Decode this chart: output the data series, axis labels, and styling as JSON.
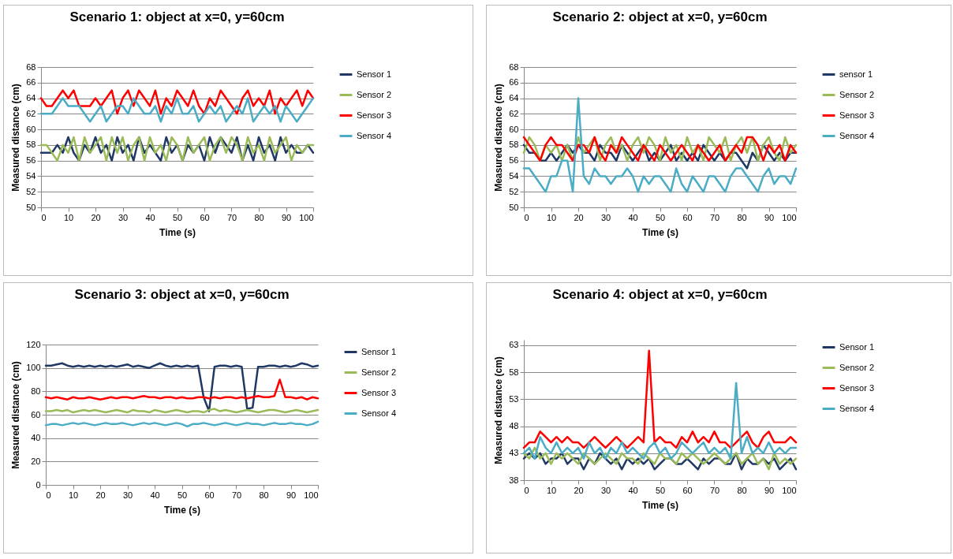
{
  "chart_data": [
    {
      "type": "line",
      "title": "Scenario 1: object at x=0, y=60cm",
      "xlabel": "Time (s)",
      "ylabel": "Measured distance (cm)",
      "x": [
        0,
        2,
        4,
        6,
        8,
        10,
        12,
        14,
        16,
        18,
        20,
        22,
        24,
        26,
        28,
        30,
        32,
        34,
        36,
        38,
        40,
        42,
        44,
        46,
        48,
        50,
        52,
        54,
        56,
        58,
        60,
        62,
        64,
        66,
        68,
        70,
        72,
        74,
        76,
        78,
        80,
        82,
        84,
        86,
        88,
        90,
        92,
        94,
        96,
        98,
        100
      ],
      "xlim": [
        0,
        100
      ],
      "xticks": [
        0,
        10,
        20,
        30,
        40,
        50,
        60,
        70,
        80,
        90,
        100
      ],
      "ylim": [
        50,
        68
      ],
      "yticks": [
        50,
        52,
        54,
        56,
        58,
        60,
        62,
        64,
        66,
        68
      ],
      "grid": "y",
      "legend": "right",
      "line_style": "solid",
      "series": [
        {
          "name": "Sensor 1",
          "color": "#1f3864",
          "values": [
            57,
            57,
            57,
            58,
            57,
            59,
            57,
            56,
            58,
            57,
            59,
            57,
            58,
            56,
            59,
            57,
            58,
            56,
            59,
            57,
            58,
            57,
            56,
            59,
            57,
            58,
            56,
            58,
            57,
            58,
            56,
            59,
            57,
            59,
            58,
            57,
            59,
            56,
            58,
            56,
            59,
            57,
            58,
            56,
            59,
            57,
            58,
            57,
            57,
            58,
            57
          ]
        },
        {
          "name": "Sensor 2",
          "color": "#9bbb59",
          "values": [
            58,
            58,
            57,
            56,
            58,
            57,
            59,
            56,
            59,
            57,
            58,
            59,
            56,
            59,
            57,
            59,
            56,
            58,
            59,
            56,
            59,
            57,
            58,
            56,
            59,
            58,
            56,
            59,
            57,
            58,
            59,
            56,
            58,
            59,
            57,
            59,
            58,
            56,
            59,
            57,
            58,
            56,
            59,
            57,
            58,
            59,
            56,
            58,
            57,
            58,
            58
          ]
        },
        {
          "name": "Sensor 3",
          "color": "#ff0000",
          "values": [
            64,
            63,
            63,
            64,
            65,
            64,
            65,
            63,
            63,
            63,
            64,
            63,
            64,
            65,
            62,
            64,
            65,
            63,
            65,
            64,
            63,
            65,
            62,
            64,
            63,
            65,
            64,
            63,
            65,
            63,
            62,
            64,
            63,
            65,
            64,
            63,
            62,
            64,
            65,
            63,
            64,
            63,
            65,
            62,
            64,
            63,
            64,
            65,
            63,
            65,
            64
          ]
        },
        {
          "name": "Sensor 4",
          "color": "#4bacc6",
          "values": [
            62,
            62,
            62,
            63,
            64,
            63,
            63,
            63,
            62,
            61,
            62,
            63,
            61,
            62,
            63,
            63,
            62,
            64,
            63,
            62,
            62,
            63,
            61,
            63,
            62,
            64,
            62,
            62,
            63,
            61,
            62,
            63,
            62,
            63,
            61,
            62,
            63,
            62,
            64,
            61,
            62,
            63,
            62,
            63,
            61,
            63,
            62,
            61,
            62,
            63,
            64
          ]
        }
      ]
    },
    {
      "type": "line",
      "title": "Scenario 2: object at x=0, y=60cm",
      "xlabel": "Time (s)",
      "ylabel": "Measured distance (cm)",
      "x": [
        0,
        2,
        4,
        6,
        8,
        10,
        12,
        14,
        16,
        18,
        20,
        22,
        24,
        26,
        28,
        30,
        32,
        34,
        36,
        38,
        40,
        42,
        44,
        46,
        48,
        50,
        52,
        54,
        56,
        58,
        60,
        62,
        64,
        66,
        68,
        70,
        72,
        74,
        76,
        78,
        80,
        82,
        84,
        86,
        88,
        90,
        92,
        94,
        96,
        98,
        100
      ],
      "xlim": [
        0,
        100
      ],
      "xticks": [
        0,
        10,
        20,
        30,
        40,
        50,
        60,
        70,
        80,
        90,
        100
      ],
      "ylim": [
        50,
        68
      ],
      "yticks": [
        50,
        52,
        54,
        56,
        58,
        60,
        62,
        64,
        66,
        68
      ],
      "grid": "y",
      "legend": "right",
      "line_style": "solid",
      "series": [
        {
          "name": "sensor 1",
          "color": "#1f3864",
          "values": [
            58,
            57,
            57,
            56,
            56,
            57,
            56,
            57,
            58,
            57,
            58,
            57,
            57,
            56,
            58,
            57,
            57,
            56,
            58,
            57,
            56,
            57,
            58,
            56,
            57,
            56,
            57,
            58,
            56,
            57,
            56,
            57,
            56,
            58,
            57,
            56,
            57,
            56,
            57,
            57,
            56,
            55,
            57,
            56,
            58,
            57,
            56,
            57,
            56,
            57,
            57
          ]
        },
        {
          "name": "Sensor 2",
          "color": "#9bbb59",
          "values": [
            57,
            59,
            58,
            56,
            58,
            57,
            58,
            56,
            58,
            56,
            59,
            57,
            58,
            59,
            56,
            58,
            59,
            57,
            58,
            56,
            58,
            59,
            57,
            59,
            58,
            56,
            59,
            57,
            58,
            56,
            59,
            57,
            58,
            56,
            59,
            58,
            57,
            59,
            56,
            58,
            59,
            57,
            59,
            56,
            58,
            59,
            57,
            56,
            59,
            57,
            58
          ]
        },
        {
          "name": "Sensor 3",
          "color": "#ff0000",
          "values": [
            59,
            58,
            57,
            56,
            58,
            59,
            58,
            58,
            57,
            56,
            58,
            58,
            57,
            59,
            57,
            56,
            58,
            57,
            59,
            58,
            57,
            56,
            58,
            57,
            56,
            58,
            57,
            56,
            57,
            58,
            57,
            56,
            58,
            57,
            56,
            57,
            58,
            56,
            57,
            58,
            57,
            59,
            59,
            58,
            56,
            58,
            57,
            58,
            56,
            58,
            57
          ]
        },
        {
          "name": "Sensor 4",
          "color": "#4bacc6",
          "values": [
            55,
            55,
            54,
            53,
            52,
            54,
            54,
            56,
            56,
            52,
            64,
            54,
            53,
            55,
            54,
            54,
            53,
            54,
            54,
            55,
            54,
            52,
            54,
            53,
            54,
            54,
            53,
            52,
            55,
            53,
            52,
            54,
            53,
            52,
            54,
            54,
            53,
            52,
            54,
            55,
            55,
            54,
            53,
            52,
            54,
            55,
            53,
            54,
            54,
            53,
            55
          ]
        }
      ]
    },
    {
      "type": "line",
      "title": "Scenario 3: object at x=0, y=60cm",
      "xlabel": "Time (s)",
      "ylabel": "Measured distance (cm)",
      "x": [
        0,
        2,
        4,
        6,
        8,
        10,
        12,
        14,
        16,
        18,
        20,
        22,
        24,
        26,
        28,
        30,
        32,
        34,
        36,
        38,
        40,
        42,
        44,
        46,
        48,
        50,
        52,
        54,
        56,
        58,
        60,
        62,
        64,
        66,
        68,
        70,
        72,
        74,
        76,
        78,
        80,
        82,
        84,
        86,
        88,
        90,
        92,
        94,
        96,
        98,
        100
      ],
      "xlim": [
        0,
        100
      ],
      "xticks": [
        0,
        10,
        20,
        30,
        40,
        50,
        60,
        70,
        80,
        90,
        100
      ],
      "ylim": [
        0,
        120
      ],
      "yticks": [
        0,
        20,
        40,
        60,
        80,
        100,
        120
      ],
      "grid": "y",
      "legend": "right",
      "line_style": "solid",
      "series": [
        {
          "name": "Sensor 1",
          "color": "#1f3864",
          "values": [
            102,
            102,
            103,
            104,
            102,
            101,
            102,
            101,
            102,
            101,
            102,
            101,
            102,
            101,
            102,
            103,
            101,
            102,
            101,
            100,
            102,
            104,
            102,
            101,
            102,
            101,
            102,
            101,
            102,
            75,
            63,
            101,
            102,
            102,
            101,
            102,
            101,
            65,
            66,
            101,
            101,
            102,
            102,
            101,
            102,
            101,
            102,
            104,
            103,
            101,
            102
          ]
        },
        {
          "name": "Sensor 2",
          "color": "#9bbb59",
          "values": [
            63,
            63,
            64,
            63,
            64,
            62,
            63,
            64,
            63,
            64,
            63,
            62,
            63,
            64,
            63,
            62,
            64,
            63,
            63,
            62,
            64,
            63,
            62,
            63,
            64,
            63,
            62,
            63,
            63,
            62,
            64,
            65,
            63,
            64,
            63,
            62,
            63,
            64,
            63,
            62,
            63,
            64,
            64,
            63,
            62,
            63,
            64,
            63,
            62,
            63,
            64
          ]
        },
        {
          "name": "Sensor 3",
          "color": "#ff0000",
          "values": [
            75,
            74,
            75,
            74,
            73,
            75,
            74,
            74,
            75,
            74,
            73,
            74,
            75,
            74,
            75,
            75,
            74,
            75,
            76,
            75,
            75,
            74,
            75,
            75,
            74,
            75,
            74,
            74,
            75,
            75,
            74,
            75,
            74,
            75,
            75,
            74,
            75,
            74,
            75,
            76,
            75,
            75,
            76,
            90,
            75,
            75,
            74,
            75,
            73,
            75,
            74
          ]
        },
        {
          "name": "Sensor 4",
          "color": "#4bacc6",
          "values": [
            51,
            52,
            52,
            51,
            52,
            53,
            52,
            53,
            52,
            51,
            52,
            53,
            52,
            52,
            53,
            52,
            51,
            52,
            53,
            52,
            53,
            52,
            51,
            52,
            53,
            52,
            50,
            52,
            52,
            53,
            52,
            51,
            52,
            53,
            52,
            51,
            52,
            53,
            52,
            52,
            51,
            52,
            53,
            52,
            52,
            53,
            52,
            52,
            51,
            52,
            54
          ]
        }
      ]
    },
    {
      "type": "line",
      "title": "Scenario 4: object at x=0, y=60cm",
      "xlabel": "Time (s)",
      "ylabel": "Measured distance (cm)",
      "x": [
        0,
        2,
        4,
        6,
        8,
        10,
        12,
        14,
        16,
        18,
        20,
        22,
        24,
        26,
        28,
        30,
        32,
        34,
        36,
        38,
        40,
        42,
        44,
        46,
        48,
        50,
        52,
        54,
        56,
        58,
        60,
        62,
        64,
        66,
        68,
        70,
        72,
        74,
        76,
        78,
        80,
        82,
        84,
        86,
        88,
        90,
        92,
        94,
        96,
        98,
        100
      ],
      "xlim": [
        0,
        100
      ],
      "xticks": [
        0,
        10,
        20,
        30,
        40,
        50,
        60,
        70,
        80,
        90,
        100
      ],
      "ylim": [
        38,
        64
      ],
      "yticks": [
        38,
        43,
        48,
        53,
        58,
        63
      ],
      "grid": "y",
      "legend": "right",
      "line_style": "solid",
      "series": [
        {
          "name": "Sensor 1",
          "color": "#1f3864",
          "values": [
            42,
            43,
            42,
            43,
            41,
            42,
            42,
            43,
            41,
            42,
            42,
            40,
            42,
            41,
            43,
            42,
            41,
            42,
            40,
            42,
            41,
            42,
            41,
            42,
            40,
            41,
            42,
            42,
            41,
            41,
            42,
            41,
            40,
            42,
            41,
            42,
            42,
            41,
            41,
            43,
            40,
            42,
            41,
            41,
            42,
            41,
            42,
            40,
            41,
            42,
            40
          ]
        },
        {
          "name": "Sensor 2",
          "color": "#9bbb59",
          "values": [
            43,
            42,
            44,
            42,
            43,
            41,
            43,
            42,
            43,
            42,
            41,
            43,
            42,
            41,
            42,
            43,
            42,
            41,
            43,
            42,
            42,
            41,
            43,
            42,
            41,
            43,
            42,
            42,
            41,
            43,
            42,
            43,
            42,
            41,
            42,
            43,
            42,
            41,
            42,
            43,
            41,
            42,
            43,
            41,
            42,
            40,
            43,
            41,
            42,
            41,
            42
          ]
        },
        {
          "name": "Sensor 3",
          "color": "#ff0000",
          "values": [
            44,
            45,
            45,
            47,
            46,
            45,
            46,
            45,
            46,
            45,
            45,
            44,
            45,
            46,
            45,
            44,
            45,
            46,
            45,
            44,
            45,
            46,
            45,
            62,
            45,
            46,
            45,
            45,
            44,
            46,
            45,
            47,
            45,
            46,
            45,
            47,
            45,
            45,
            44,
            45,
            46,
            47,
            45,
            44,
            46,
            47,
            45,
            45,
            45,
            46,
            45
          ]
        },
        {
          "name": "Sensor 4",
          "color": "#4bacc6",
          "values": [
            43,
            44,
            42,
            46,
            44,
            43,
            45,
            43,
            44,
            43,
            44,
            42,
            45,
            43,
            44,
            42,
            44,
            43,
            45,
            43,
            44,
            43,
            42,
            44,
            45,
            43,
            44,
            42,
            43,
            45,
            44,
            43,
            44,
            45,
            43,
            44,
            43,
            44,
            42,
            56,
            43,
            46,
            43,
            44,
            43,
            45,
            43,
            44,
            43,
            44,
            44
          ]
        }
      ]
    }
  ]
}
